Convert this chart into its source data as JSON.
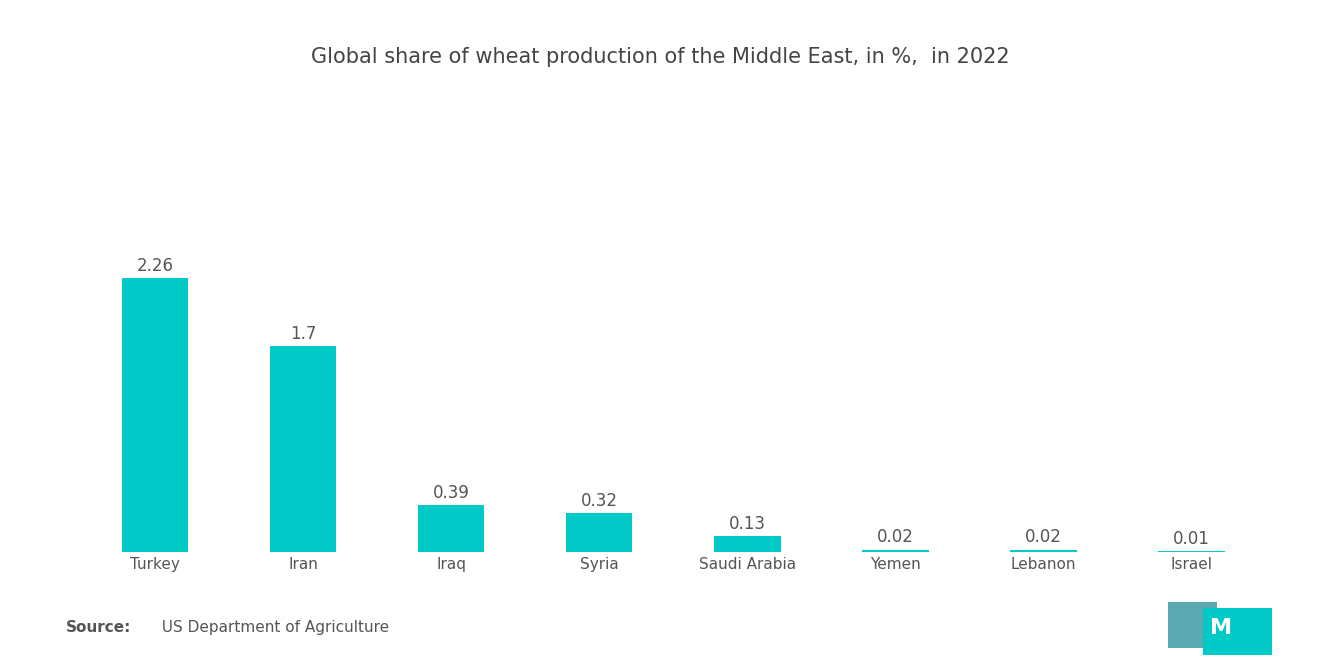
{
  "title": "Global share of wheat production of the Middle East, in %,  in 2022",
  "categories": [
    "Turkey",
    "Iran",
    "Iraq",
    "Syria",
    "Saudi Arabia",
    "Yemen",
    "Lebanon",
    "Israel"
  ],
  "values": [
    2.26,
    1.7,
    0.39,
    0.32,
    0.13,
    0.02,
    0.02,
    0.01
  ],
  "bar_color": "#00C9C8",
  "label_color": "#555555",
  "title_color": "#444444",
  "source_bold": "Source:",
  "source_text": "  US Department of Agriculture",
  "background_color": "#ffffff",
  "title_fontsize": 15,
  "label_fontsize": 12,
  "tick_fontsize": 11,
  "source_fontsize": 11,
  "bar_width": 0.45,
  "ylim_max": 2.85
}
